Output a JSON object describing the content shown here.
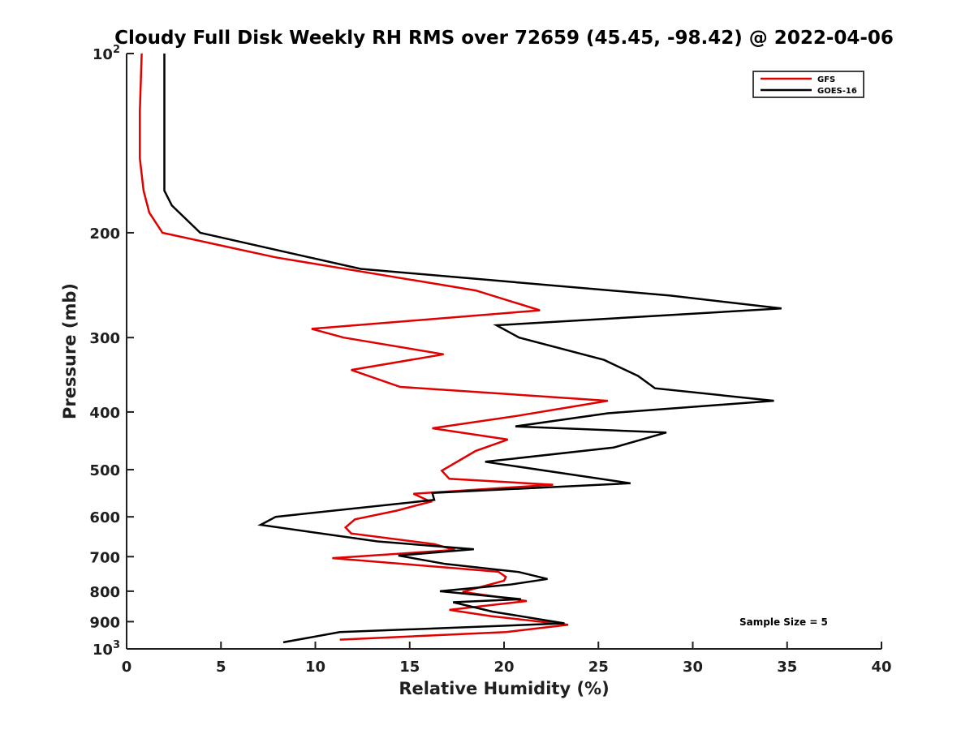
{
  "chart_data": {
    "type": "line",
    "title": "Cloudy Full Disk Weekly RH RMS over 72659 (45.45, -98.42) @ 2022-04-06",
    "xlabel": "Relative Humidity (%)",
    "ylabel": "Pressure (mb)",
    "xlim": [
      0,
      40
    ],
    "ylim": [
      100,
      1000
    ],
    "y_scale": "log",
    "y_reversed": true,
    "x_ticks": [
      "0",
      "5",
      "10",
      "15",
      "20",
      "25",
      "30",
      "35",
      "40"
    ],
    "y_ticks": [
      {
        "value": 100,
        "base": "10",
        "exp": "2"
      },
      {
        "value": 200,
        "label": "200"
      },
      {
        "value": 300,
        "label": "300"
      },
      {
        "value": 400,
        "label": "400"
      },
      {
        "value": 500,
        "label": "500"
      },
      {
        "value": 600,
        "label": "600"
      },
      {
        "value": 700,
        "label": "700"
      },
      {
        "value": 800,
        "label": "800"
      },
      {
        "value": 900,
        "label": "900"
      },
      {
        "value": 1000,
        "base": "10",
        "exp": "3"
      }
    ],
    "legend_position": "top-right",
    "annotation": "Sample Size = 5",
    "series": [
      {
        "name": "GFS",
        "color": "#e00000",
        "points": [
          [
            0.8,
            100
          ],
          [
            0.7,
            125
          ],
          [
            0.7,
            150
          ],
          [
            0.9,
            170
          ],
          [
            1.2,
            185
          ],
          [
            1.9,
            200
          ],
          [
            7.9,
            220
          ],
          [
            18.5,
            250
          ],
          [
            21.9,
            270
          ],
          [
            9.8,
            290
          ],
          [
            11.5,
            300
          ],
          [
            16.8,
            320
          ],
          [
            11.9,
            340
          ],
          [
            14.5,
            363
          ],
          [
            25.5,
            383
          ],
          [
            20.7,
            406
          ],
          [
            16.2,
            426
          ],
          [
            20.2,
            445
          ],
          [
            18.5,
            465
          ],
          [
            18.2,
            471
          ],
          [
            16.7,
            502
          ],
          [
            17.1,
            518
          ],
          [
            22.6,
            530
          ],
          [
            15.2,
            549
          ],
          [
            15.9,
            562
          ],
          [
            16.1,
            566
          ],
          [
            14.3,
            586
          ],
          [
            12.1,
            606
          ],
          [
            11.6,
            625
          ],
          [
            11.9,
            640
          ],
          [
            16.3,
            667
          ],
          [
            17.4,
            682
          ],
          [
            10.9,
            704
          ],
          [
            19.7,
            742
          ],
          [
            20.1,
            757
          ],
          [
            20.0,
            768
          ],
          [
            17.8,
            802
          ],
          [
            21.2,
            831
          ],
          [
            17.1,
            860
          ],
          [
            19.3,
            881
          ],
          [
            23.4,
            911
          ],
          [
            20.1,
            937
          ],
          [
            11.3,
            965
          ]
        ]
      },
      {
        "name": "GOES-16",
        "color": "#000000",
        "points": [
          [
            2.0,
            100
          ],
          [
            2.0,
            125
          ],
          [
            2.0,
            150
          ],
          [
            2.0,
            170
          ],
          [
            2.4,
            180
          ],
          [
            3.9,
            200
          ],
          [
            12.4,
            230
          ],
          [
            28.8,
            255
          ],
          [
            34.7,
            268
          ],
          [
            19.6,
            286
          ],
          [
            20.8,
            300
          ],
          [
            25.3,
            327
          ],
          [
            27.1,
            348
          ],
          [
            28.0,
            365
          ],
          [
            34.3,
            383
          ],
          [
            25.5,
            402
          ],
          [
            20.6,
            423
          ],
          [
            28.6,
            433
          ],
          [
            25.8,
            459
          ],
          [
            19.0,
            485
          ],
          [
            26.7,
            527
          ],
          [
            16.2,
            547
          ],
          [
            16.3,
            562
          ],
          [
            7.9,
            600
          ],
          [
            7.1,
            619
          ],
          [
            13.3,
            660
          ],
          [
            18.4,
            680
          ],
          [
            14.4,
            697
          ],
          [
            16.9,
            720
          ],
          [
            20.8,
            743
          ],
          [
            22.3,
            763
          ],
          [
            20.3,
            780
          ],
          [
            16.6,
            800
          ],
          [
            20.9,
            825
          ],
          [
            17.3,
            835
          ],
          [
            19.4,
            866
          ],
          [
            23.2,
            906
          ],
          [
            11.3,
            937
          ],
          [
            8.3,
            975
          ]
        ]
      }
    ]
  }
}
